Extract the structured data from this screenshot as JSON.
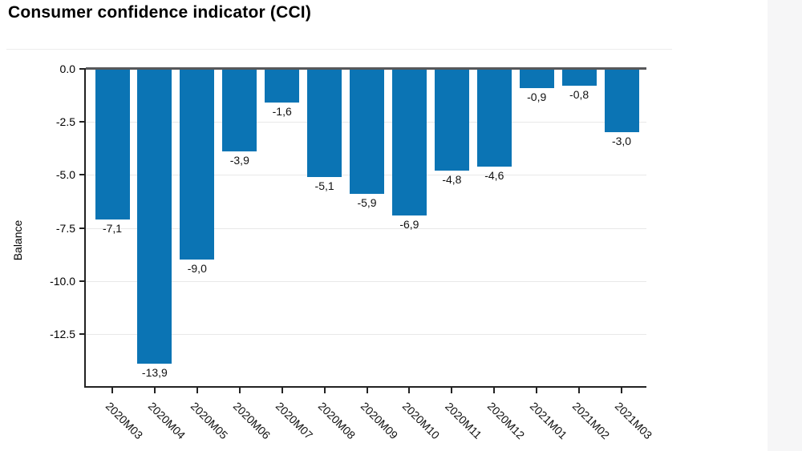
{
  "page": {
    "title": "Consumer confidence indicator (CCI)"
  },
  "chart_data": {
    "type": "bar",
    "title": "Consumer confidence indicator (CCI)",
    "xlabel": "",
    "ylabel": "Balance",
    "categories": [
      "2020M03",
      "2020M04",
      "2020M05",
      "2020M06",
      "2020M07",
      "2020M08",
      "2020M09",
      "2020M10",
      "2020M11",
      "2020M12",
      "2021M01",
      "2021M02",
      "2021M03"
    ],
    "values": [
      -7.1,
      -13.9,
      -9.0,
      -3.9,
      -1.6,
      -5.1,
      -5.9,
      -6.9,
      -4.8,
      -4.6,
      -0.9,
      -0.8,
      -3.0
    ],
    "value_labels": [
      "-7,1",
      "-13,9",
      "-9,0",
      "-3,9",
      "-1,6",
      "-5,1",
      "-5,9",
      "-6,9",
      "-4,8",
      "-4,6",
      "-0,9",
      "-0,8",
      "-3,0"
    ],
    "yticks": [
      0,
      -2.5,
      -5,
      -7.5,
      -10,
      -12.5
    ],
    "ytick_labels": [
      "0.0",
      "-2.5",
      "-5.0",
      "-7.5",
      "-10.0",
      "-12.5"
    ],
    "ylim": [
      -15,
      0
    ],
    "grid": true,
    "legend": "none",
    "bar_color": "#0b74b4",
    "zero_line_color": "#57585a",
    "axis_color": "#222222",
    "grid_color": "#e8e8e8"
  }
}
